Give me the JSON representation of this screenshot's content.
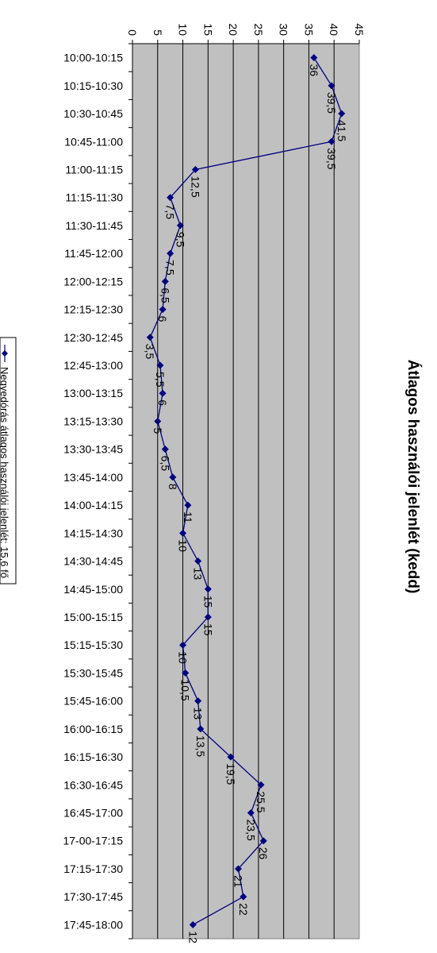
{
  "chart_data": {
    "type": "line",
    "title": "Átlagos használói jelenlét (kedd)",
    "categories": [
      "10:00-10:15",
      "10:15-10:30",
      "10:30-10:45",
      "10:45-11:00",
      "11:00-11:15",
      "11:15-11:30",
      "11:30-11:45",
      "11:45-12:00",
      "12:00-12:15",
      "12:15-12:30",
      "12:30-12:45",
      "12:45-13:00",
      "13:00-13:15",
      "13:15-13:30",
      "13:30-13:45",
      "13:45-14:00",
      "14:00-14:15",
      "14:15-14:30",
      "14:30-14:45",
      "14:45-15:00",
      "15:00-15:15",
      "15:15-15:30",
      "15:30-15:45",
      "15:45-16:00",
      "16:00-16:15",
      "16:15-16:30",
      "16:30-16:45",
      "16:45-17:00",
      "17-00-17:15",
      "17:15-17:30",
      "17:30-17:45",
      "17:45-18:00"
    ],
    "series": [
      {
        "name": "Negyedórás átlagos használói jelenlét: 15,6 fő",
        "values": [
          36,
          39.5,
          41.5,
          39.5,
          12.5,
          7.5,
          9.5,
          7.5,
          6.5,
          6,
          3.5,
          5.5,
          6,
          5,
          6.5,
          8,
          11,
          10,
          13,
          15,
          15,
          10,
          10.5,
          13,
          13.5,
          19.5,
          25.5,
          23.5,
          26,
          21,
          22,
          12
        ],
        "labels": [
          "36",
          "39,5",
          "41,5",
          "39,5",
          "12,5",
          "7,5",
          "9,5",
          "7,5",
          "6,5",
          "6",
          "3,5",
          "5,5",
          "6",
          "5",
          "6,5",
          "8",
          "11",
          "10",
          "13",
          "15",
          "15",
          "10",
          "10,5",
          "13",
          "13,5",
          "19,5",
          "25,5",
          "23,5",
          "26",
          "21",
          "22",
          "12"
        ],
        "color": "#000080"
      }
    ],
    "ylim": [
      0,
      45
    ],
    "yticks": [
      "0",
      "5",
      "10",
      "15",
      "20",
      "25",
      "30",
      "35",
      "40",
      "45"
    ],
    "grid": true,
    "orientation": "rotated-90",
    "plot_background": "#c0c0c0",
    "legend_position": "left"
  }
}
